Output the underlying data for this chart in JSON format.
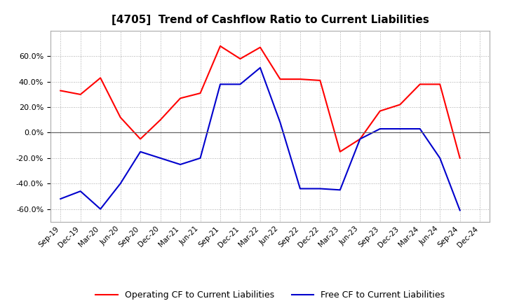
{
  "title": "[4705]  Trend of Cashflow Ratio to Current Liabilities",
  "labels": [
    "Sep-19",
    "Dec-19",
    "Mar-20",
    "Jun-20",
    "Sep-20",
    "Dec-20",
    "Mar-21",
    "Jun-21",
    "Sep-21",
    "Dec-21",
    "Mar-22",
    "Jun-22",
    "Sep-22",
    "Dec-22",
    "Mar-23",
    "Jun-23",
    "Sep-23",
    "Dec-23",
    "Mar-24",
    "Jun-24",
    "Sep-24",
    "Dec-24"
  ],
  "operating_cf": [
    33,
    30,
    43,
    12,
    -5,
    10,
    27,
    31,
    68,
    58,
    67,
    42,
    42,
    41,
    -15,
    -5,
    17,
    22,
    38,
    38,
    -20,
    null
  ],
  "free_cf": [
    -52,
    -46,
    -60,
    -40,
    -15,
    -20,
    -25,
    -20,
    38,
    38,
    51,
    8,
    -44,
    -44,
    -45,
    -5,
    3,
    3,
    3,
    -20,
    -61,
    null
  ],
  "operating_color": "#FF0000",
  "free_color": "#0000CD",
  "ylim": [
    -70,
    80
  ],
  "yticks": [
    -60,
    -40,
    -20,
    0,
    20,
    40,
    60
  ],
  "background_color": "#FFFFFF",
  "plot_bg_color": "#FFFFFF",
  "grid_color": "#AAAAAA",
  "legend_op": "Operating CF to Current Liabilities",
  "legend_free": "Free CF to Current Liabilities"
}
